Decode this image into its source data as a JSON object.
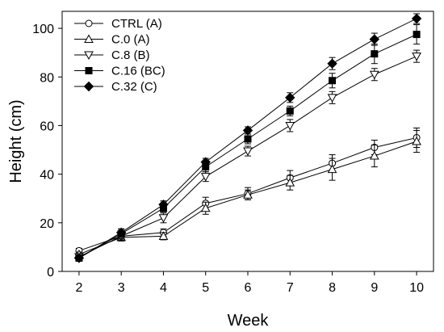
{
  "chart_data": {
    "type": "line",
    "title": "",
    "xlabel": "Week",
    "ylabel": "Height (cm)",
    "xlim": [
      1.6,
      10.4
    ],
    "ylim": [
      0,
      107
    ],
    "x_ticks": [
      2,
      3,
      4,
      5,
      6,
      7,
      8,
      9,
      10
    ],
    "y_ticks": [
      0,
      20,
      40,
      60,
      80,
      100
    ],
    "grid": false,
    "legend_position": "top-left",
    "x": [
      2,
      3,
      4,
      5,
      6,
      7,
      8,
      9,
      10
    ],
    "series": [
      {
        "name": "CTRL (A)",
        "marker": "circle-open",
        "values": [
          8.5,
          14.5,
          16,
          28,
          32,
          38.5,
          44.5,
          51,
          55
        ],
        "errors": [
          1,
          1.5,
          1.5,
          2.5,
          2.5,
          3,
          3.5,
          3,
          4
        ]
      },
      {
        "name": "C.0 (A)",
        "marker": "triangle-up-open",
        "values": [
          7,
          14,
          14.5,
          26,
          31.5,
          36.5,
          42,
          47.5,
          53.5
        ],
        "errors": [
          1,
          1.5,
          1.5,
          2.5,
          2,
          3,
          4.5,
          4.5,
          4.5
        ]
      },
      {
        "name": "C.8 (B)",
        "marker": "triangle-down-open",
        "values": [
          6,
          14.5,
          22,
          39,
          49.5,
          60,
          71.5,
          81,
          88.5
        ],
        "errors": [
          1,
          1.5,
          2,
          2,
          2,
          2.5,
          2.5,
          2.5,
          2.5
        ]
      },
      {
        "name": "C.16 (BC)",
        "marker": "square-filled",
        "values": [
          5.5,
          15.5,
          26,
          43,
          54.5,
          66,
          78.5,
          89.5,
          97.5
        ],
        "errors": [
          1,
          2,
          1.5,
          2,
          2,
          2,
          3,
          4,
          4
        ]
      },
      {
        "name": "C.32 (C)",
        "marker": "diamond-filled",
        "values": [
          5.5,
          16,
          27.5,
          45,
          58,
          71.5,
          85.5,
          95.5,
          104
        ],
        "errors": [
          1,
          1.5,
          1.5,
          1.5,
          1.5,
          2,
          2.5,
          2.5,
          2
        ]
      }
    ]
  }
}
